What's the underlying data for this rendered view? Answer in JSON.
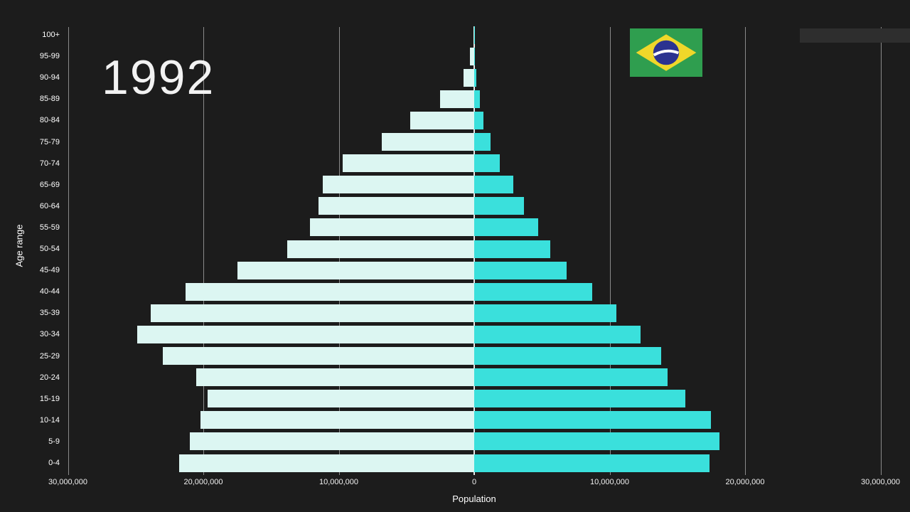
{
  "header": {
    "year": "1992"
  },
  "axes": {
    "y_title": "Age range",
    "x_title": "Population"
  },
  "flag": {
    "country": "Brazil",
    "green": "#2f9e4f",
    "yellow": "#f0d72a",
    "blue": "#2b3390",
    "band": "#ffffff"
  },
  "colors": {
    "background": "#1c1c1c",
    "left_bar": "#dcf6f2",
    "right_bar": "#3ae0dc",
    "gridline": "#8a8a8a",
    "centerline": "#e8e8e8",
    "text": "#ffffff"
  },
  "chart_data": {
    "type": "bar",
    "subtype": "population-pyramid",
    "title": "1992",
    "xlabel": "Population",
    "ylabel": "Age range",
    "unit": "millions",
    "xlim_millions": [
      -30,
      30
    ],
    "grid": true,
    "categories_bottom_to_top": [
      "0-4",
      "5-9",
      "10-14",
      "15-19",
      "20-24",
      "25-29",
      "30-34",
      "35-39",
      "40-44",
      "45-49",
      "50-54",
      "55-59",
      "60-64",
      "65-69",
      "70-74",
      "75-79",
      "80-84",
      "85-89",
      "90-94",
      "95-99",
      "100+"
    ],
    "series": [
      {
        "name": "left",
        "color": "#dcf6f2",
        "values": [
          21.8,
          21.0,
          20.2,
          19.7,
          20.5,
          23.0,
          24.9,
          23.9,
          21.3,
          17.5,
          13.8,
          12.1,
          11.5,
          11.2,
          9.7,
          6.8,
          4.7,
          2.5,
          0.8,
          0.3,
          0.05
        ]
      },
      {
        "name": "right",
        "color": "#3ae0dc",
        "values": [
          17.4,
          18.1,
          17.5,
          15.6,
          14.3,
          13.8,
          12.3,
          10.5,
          8.7,
          6.8,
          5.6,
          4.7,
          3.7,
          2.9,
          1.9,
          1.2,
          0.7,
          0.4,
          0.15,
          0.05,
          0.02
        ]
      }
    ],
    "x_axis": {
      "tick_labels": [
        "30,000,000",
        "20,000,000",
        "10,000,000",
        "0",
        "10,000,000",
        "20,000,000",
        "30,000,000"
      ],
      "tick_values_millions": [
        -30,
        -20,
        -10,
        0,
        10,
        20,
        30
      ]
    }
  }
}
